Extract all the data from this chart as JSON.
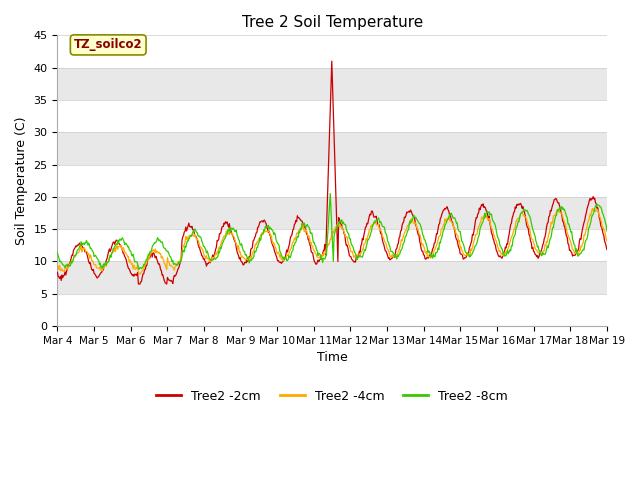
{
  "title": "Tree 2 Soil Temperature",
  "xlabel": "Time",
  "ylabel": "Soil Temperature (C)",
  "ylim": [
    0,
    45
  ],
  "yticks": [
    0,
    5,
    10,
    15,
    20,
    25,
    30,
    35,
    40,
    45
  ],
  "xtick_labels": [
    "Mar 4",
    "Mar 5",
    "Mar 6",
    "Mar 7",
    "Mar 8",
    "Mar 9",
    "Mar 10",
    "Mar 11",
    "Mar 12",
    "Mar 13",
    "Mar 14",
    "Mar 15",
    "Mar 16",
    "Mar 17",
    "Mar 18",
    "Mar 19"
  ],
  "line_colors": {
    "2cm": "#cc0000",
    "4cm": "#ffaa00",
    "8cm": "#33cc00"
  },
  "legend_labels": [
    "Tree2 -2cm",
    "Tree2 -4cm",
    "Tree2 -8cm"
  ],
  "annotation_label": "TZ_soilco2",
  "annotation_color": "#880000",
  "annotation_bg": "#ffffcc",
  "annotation_border": "#888800",
  "figure_bg": "#ffffff",
  "plot_bg": "#ffffff",
  "stripe_color": "#e8e8e8",
  "grid_color": "#cccccc",
  "n_days": 15,
  "samples_per_day": 48,
  "figsize": [
    6.4,
    4.8
  ],
  "dpi": 100
}
